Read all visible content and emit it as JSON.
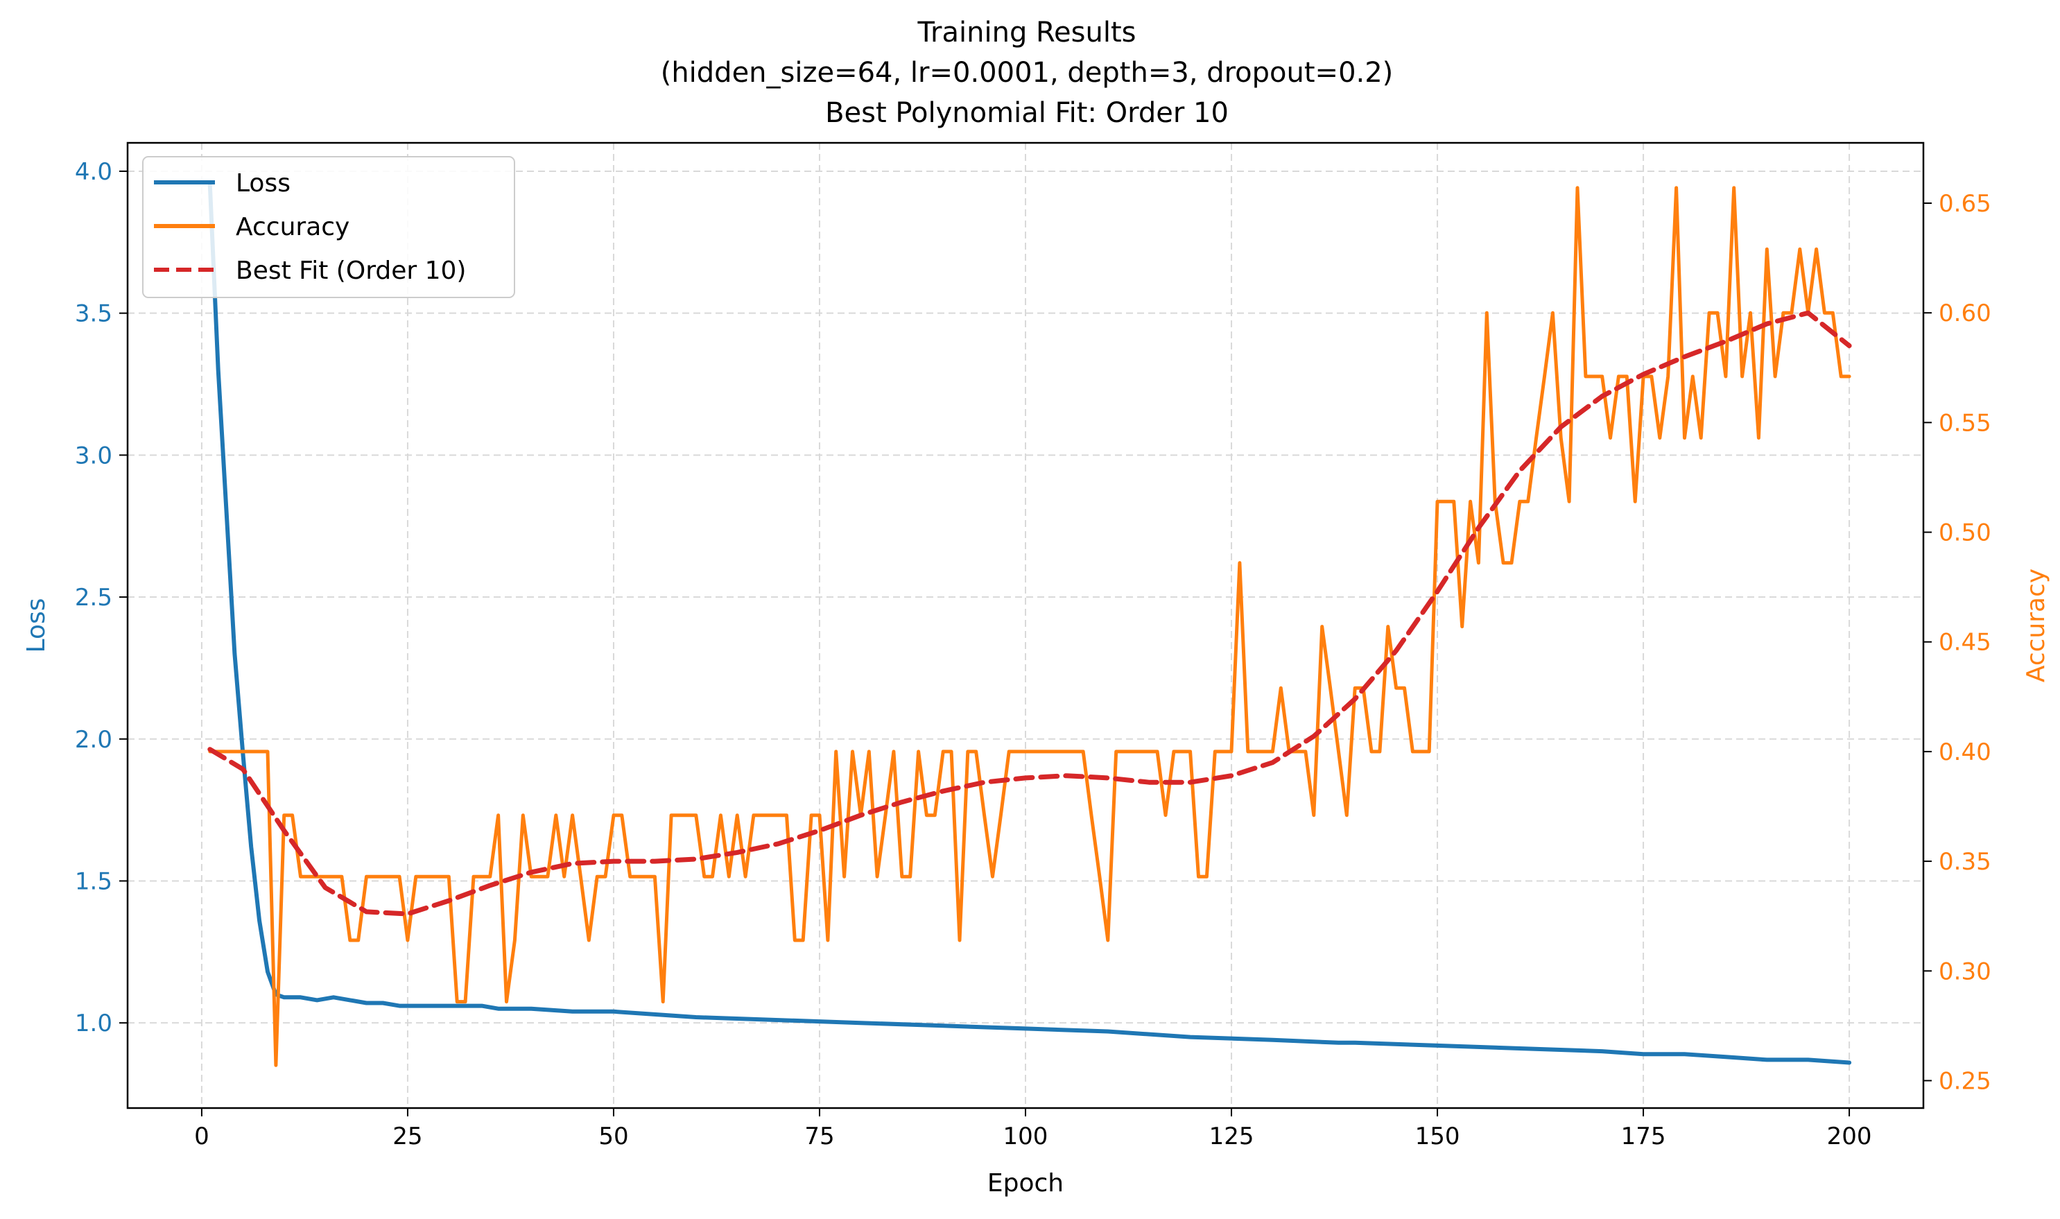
{
  "chart_data": {
    "type": "line",
    "title": "Training Results",
    "subtitle_lines": [
      "(hidden_size=64, lr=0.0001, depth=3, dropout=0.2)",
      "Best Polynomial Fit: Order 10"
    ],
    "xlabel": "Epoch",
    "ylabel_left": "Loss",
    "ylabel_right": "Accuracy",
    "xlim": [
      -9,
      209
    ],
    "ylim_left": [
      0.7,
      4.1
    ],
    "ylim_right": [
      0.2375,
      0.6775
    ],
    "x_ticks": [
      0,
      25,
      50,
      75,
      100,
      125,
      150,
      175,
      200
    ],
    "y_left_ticks": [
      "1.0",
      "1.5",
      "2.0",
      "2.5",
      "3.0",
      "3.5",
      "4.0"
    ],
    "y_right_ticks": [
      "0.25",
      "0.30",
      "0.35",
      "0.40",
      "0.45",
      "0.50",
      "0.55",
      "0.60",
      "0.65"
    ],
    "grid": true,
    "legend_position": "upper-left",
    "colors": {
      "loss": "#1f77b4",
      "accuracy": "#ff7f0e",
      "fit": "#d62728",
      "grid": "#d9d9d9",
      "axis": "#000000"
    },
    "series": [
      {
        "name": "Loss",
        "axis": "left",
        "style": "solid",
        "x": [
          1,
          2,
          3,
          4,
          5,
          6,
          7,
          8,
          9,
          10,
          12,
          14,
          16,
          18,
          20,
          22,
          24,
          26,
          28,
          30,
          32,
          34,
          36,
          38,
          40,
          45,
          50,
          60,
          70,
          80,
          90,
          100,
          110,
          120,
          130,
          138,
          140,
          150,
          160,
          170,
          175,
          180,
          185,
          190,
          195,
          200
        ],
        "values": [
          3.95,
          3.3,
          2.8,
          2.3,
          1.95,
          1.62,
          1.36,
          1.18,
          1.1,
          1.09,
          1.09,
          1.08,
          1.09,
          1.08,
          1.07,
          1.07,
          1.06,
          1.06,
          1.06,
          1.06,
          1.06,
          1.06,
          1.05,
          1.05,
          1.05,
          1.04,
          1.04,
          1.02,
          1.01,
          1.0,
          0.99,
          0.98,
          0.97,
          0.95,
          0.94,
          0.93,
          0.93,
          0.92,
          0.91,
          0.9,
          0.89,
          0.89,
          0.88,
          0.87,
          0.87,
          0.86
        ]
      },
      {
        "name": "Accuracy",
        "axis": "right",
        "style": "solid",
        "x": [
          1,
          2,
          3,
          4,
          5,
          6,
          7,
          8,
          9,
          10,
          11,
          12,
          13,
          14,
          15,
          16,
          17,
          18,
          19,
          20,
          21,
          22,
          23,
          24,
          25,
          26,
          27,
          28,
          29,
          30,
          31,
          32,
          33,
          34,
          35,
          36,
          37,
          38,
          39,
          40,
          41,
          42,
          43,
          44,
          45,
          46,
          47,
          48,
          49,
          50,
          51,
          52,
          53,
          54,
          55,
          56,
          57,
          58,
          59,
          60,
          61,
          62,
          63,
          64,
          65,
          66,
          67,
          68,
          69,
          70,
          71,
          72,
          73,
          74,
          75,
          76,
          77,
          78,
          79,
          80,
          81,
          82,
          83,
          84,
          85,
          86,
          87,
          88,
          89,
          90,
          91,
          92,
          93,
          94,
          95,
          96,
          97,
          98,
          99,
          100,
          101,
          102,
          103,
          104,
          105,
          106,
          107,
          108,
          109,
          110,
          111,
          112,
          113,
          114,
          115,
          116,
          117,
          118,
          119,
          120,
          121,
          122,
          123,
          124,
          125,
          126,
          127,
          128,
          129,
          130,
          131,
          132,
          133,
          134,
          135,
          136,
          137,
          138,
          139,
          140,
          141,
          142,
          143,
          144,
          145,
          146,
          147,
          148,
          149,
          150,
          151,
          152,
          153,
          154,
          155,
          156,
          157,
          158,
          159,
          160,
          161,
          162,
          163,
          164,
          165,
          166,
          167,
          168,
          169,
          170,
          171,
          172,
          173,
          174,
          175,
          176,
          177,
          178,
          179,
          180,
          181,
          182,
          183,
          184,
          185,
          186,
          187,
          188,
          189,
          190,
          191,
          192,
          193,
          194,
          195,
          196,
          197,
          198,
          199,
          200
        ],
        "values": [
          0.4,
          0.4,
          0.4,
          0.4,
          0.4,
          0.4,
          0.4,
          0.4,
          0.257,
          0.371,
          0.371,
          0.343,
          0.343,
          0.343,
          0.343,
          0.343,
          0.343,
          0.314,
          0.314,
          0.343,
          0.343,
          0.343,
          0.343,
          0.343,
          0.314,
          0.343,
          0.343,
          0.343,
          0.343,
          0.343,
          0.286,
          0.286,
          0.343,
          0.343,
          0.343,
          0.371,
          0.286,
          0.314,
          0.371,
          0.343,
          0.343,
          0.343,
          0.371,
          0.343,
          0.371,
          0.343,
          0.314,
          0.343,
          0.343,
          0.371,
          0.371,
          0.343,
          0.343,
          0.343,
          0.343,
          0.286,
          0.371,
          0.371,
          0.371,
          0.371,
          0.343,
          0.343,
          0.371,
          0.343,
          0.371,
          0.343,
          0.371,
          0.371,
          0.371,
          0.371,
          0.371,
          0.314,
          0.314,
          0.371,
          0.371,
          0.314,
          0.4,
          0.343,
          0.4,
          0.371,
          0.4,
          0.343,
          0.371,
          0.4,
          0.343,
          0.343,
          0.4,
          0.371,
          0.371,
          0.4,
          0.4,
          0.314,
          0.4,
          0.4,
          0.371,
          0.343,
          0.371,
          0.4,
          0.4,
          0.4,
          0.4,
          0.4,
          0.4,
          0.4,
          0.4,
          0.4,
          0.4,
          0.371,
          0.343,
          0.314,
          0.4,
          0.4,
          0.4,
          0.4,
          0.4,
          0.4,
          0.371,
          0.4,
          0.4,
          0.4,
          0.343,
          0.343,
          0.4,
          0.4,
          0.4,
          0.486,
          0.4,
          0.4,
          0.4,
          0.4,
          0.429,
          0.4,
          0.4,
          0.4,
          0.371,
          0.457,
          0.429,
          0.4,
          0.371,
          0.429,
          0.429,
          0.4,
          0.4,
          0.457,
          0.429,
          0.429,
          0.4,
          0.4,
          0.4,
          0.514,
          0.514,
          0.514,
          0.457,
          0.514,
          0.486,
          0.6,
          0.514,
          0.486,
          0.486,
          0.514,
          0.514,
          0.543,
          0.571,
          0.6,
          0.543,
          0.514,
          0.657,
          0.571,
          0.571,
          0.571,
          0.543,
          0.571,
          0.571,
          0.514,
          0.571,
          0.571,
          0.543,
          0.571,
          0.657,
          0.543,
          0.571,
          0.543,
          0.6,
          0.6,
          0.571,
          0.657,
          0.571,
          0.6,
          0.543,
          0.629,
          0.571,
          0.6,
          0.6,
          0.629,
          0.6,
          0.629,
          0.6,
          0.6,
          0.571,
          0.571
        ]
      },
      {
        "name": "Best Fit (Order 10)",
        "axis": "right",
        "style": "dashed",
        "x": [
          1,
          5,
          10,
          15,
          20,
          25,
          30,
          35,
          40,
          45,
          50,
          55,
          60,
          65,
          70,
          75,
          80,
          85,
          90,
          95,
          100,
          105,
          110,
          115,
          120,
          125,
          130,
          135,
          140,
          145,
          150,
          155,
          160,
          165,
          170,
          175,
          180,
          185,
          190,
          195,
          200
        ],
        "values": [
          0.401,
          0.392,
          0.364,
          0.338,
          0.327,
          0.326,
          0.332,
          0.339,
          0.345,
          0.349,
          0.35,
          0.35,
          0.351,
          0.354,
          0.358,
          0.364,
          0.371,
          0.377,
          0.382,
          0.386,
          0.388,
          0.389,
          0.388,
          0.386,
          0.386,
          0.389,
          0.395,
          0.407,
          0.424,
          0.446,
          0.473,
          0.502,
          0.528,
          0.548,
          0.562,
          0.572,
          0.58,
          0.587,
          0.595,
          0.6,
          0.585
        ]
      }
    ]
  }
}
